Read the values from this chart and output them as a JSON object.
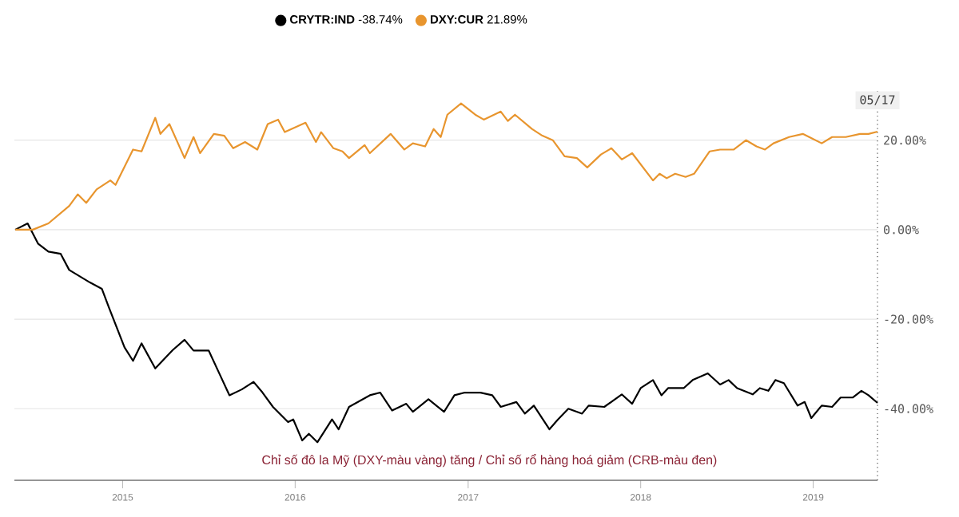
{
  "chart_data": {
    "type": "line",
    "xlim": [
      "2014-05-17",
      "2019-05-17"
    ],
    "ylim": [
      -56,
      31
    ],
    "xticks": [
      "2015",
      "2016",
      "2017",
      "2018",
      "2019"
    ],
    "yticks": [
      {
        "value": 20,
        "label": "20.00%"
      },
      {
        "value": 0,
        "label": "0.00%"
      },
      {
        "value": -20,
        "label": "-20.00%"
      },
      {
        "value": -40,
        "label": "-40.00%"
      }
    ],
    "grid": "y",
    "legend": "top",
    "marker": "none",
    "line_style": "solid",
    "ref_lines": [
      {
        "axis": "x",
        "value": "2019-05-17",
        "label": "05/17",
        "line_style": "dotted"
      }
    ],
    "annotations": [
      "Chỉ số đô la Mỹ (DXY-màu vàng) tăng / Chỉ số rổ hàng hoá giảm (CRB-màu đen)"
    ],
    "series": [
      {
        "name": "**CRYTR:IND** -38.74%",
        "color": "#000000",
        "x": [
          "2014-05-19",
          "2014-06-14",
          "2014-07-06",
          "2014-07-28",
          "2014-08-23",
          "2014-09-10",
          "2014-10-24",
          "2014-11-18",
          "2014-12-03",
          "2015-01-05",
          "2015-01-23",
          "2015-02-10",
          "2015-03-11",
          "2015-04-17",
          "2015-05-12",
          "2015-05-31",
          "2015-07-02",
          "2015-07-24",
          "2015-08-15",
          "2015-09-10",
          "2015-10-05",
          "2015-10-24",
          "2015-11-15",
          "2015-12-17",
          "2015-12-28",
          "2016-01-16",
          "2016-01-30",
          "2016-02-17",
          "2016-03-19",
          "2016-04-02",
          "2016-04-24",
          "2016-06-07",
          "2016-06-29",
          "2016-07-24",
          "2016-08-23",
          "2016-09-06",
          "2016-10-09",
          "2016-11-11",
          "2016-12-03",
          "2016-12-25",
          "2017-01-27",
          "2017-02-21",
          "2017-03-11",
          "2017-04-13",
          "2017-05-01",
          "2017-05-20",
          "2017-06-22",
          "2017-07-10",
          "2017-08-01",
          "2017-08-30",
          "2017-09-13",
          "2017-10-16",
          "2017-11-22",
          "2017-12-14",
          "2018-01-01",
          "2018-01-27",
          "2018-02-14",
          "2018-02-28",
          "2018-04-02",
          "2018-04-21",
          "2018-05-23",
          "2018-06-18",
          "2018-07-06",
          "2018-07-24",
          "2018-08-26",
          "2018-09-10",
          "2018-09-28",
          "2018-10-13",
          "2018-10-31",
          "2018-11-29",
          "2018-12-14",
          "2018-12-28",
          "2019-01-19",
          "2019-02-10",
          "2019-02-28",
          "2019-03-26",
          "2019-04-13",
          "2019-04-28",
          "2019-05-17"
        ],
        "values": [
          0,
          1.4,
          -3.1,
          -4.9,
          -5.4,
          -9,
          -11.8,
          -13.2,
          -17.4,
          -26.3,
          -29.3,
          -25.4,
          -31,
          -26.9,
          -24.6,
          -27,
          -27,
          -32,
          -37,
          -35.7,
          -34,
          -36.4,
          -39.6,
          -43,
          -42.4,
          -47.1,
          -45.6,
          -47.5,
          -42.4,
          -44.6,
          -39.6,
          -37,
          -36.4,
          -40.4,
          -38.9,
          -40.7,
          -37.9,
          -40.7,
          -37,
          -36.4,
          -36.4,
          -37,
          -39.6,
          -38.5,
          -41.1,
          -39.3,
          -44.6,
          -42.4,
          -40,
          -41.1,
          -39.3,
          -39.6,
          -36.8,
          -38.9,
          -35.4,
          -33.6,
          -37,
          -35.4,
          -35.4,
          -33.6,
          -32.1,
          -34.6,
          -33.6,
          -35.4,
          -36.8,
          -35.4,
          -36,
          -33.6,
          -34.3,
          -39.3,
          -38.5,
          -42.1,
          -39.3,
          -39.6,
          -37.5,
          -37.5,
          -36,
          -37,
          -38.7
        ]
      },
      {
        "name": "**DXY:CUR** 21.89%",
        "color": "#e8952e",
        "x": [
          "2014-05-19",
          "2014-06-25",
          "2014-07-28",
          "2014-09-10",
          "2014-09-28",
          "2014-10-16",
          "2014-11-07",
          "2014-12-06",
          "2014-12-17",
          "2015-01-23",
          "2015-02-10",
          "2015-03-11",
          "2015-03-22",
          "2015-04-10",
          "2015-05-12",
          "2015-05-31",
          "2015-06-14",
          "2015-07-13",
          "2015-08-04",
          "2015-08-23",
          "2015-09-17",
          "2015-10-13",
          "2015-11-04",
          "2015-11-26",
          "2015-12-10",
          "2016-01-23",
          "2016-02-14",
          "2016-02-25",
          "2016-03-22",
          "2016-04-10",
          "2016-04-24",
          "2016-05-27",
          "2016-06-07",
          "2016-07-21",
          "2016-08-19",
          "2016-09-06",
          "2016-10-02",
          "2016-10-20",
          "2016-11-04",
          "2016-11-18",
          "2016-12-17",
          "2017-01-16",
          "2017-02-03",
          "2017-03-11",
          "2017-03-26",
          "2017-04-10",
          "2017-05-16",
          "2017-06-07",
          "2017-06-29",
          "2017-07-24",
          "2017-08-19",
          "2017-09-10",
          "2017-10-09",
          "2017-10-31",
          "2017-11-22",
          "2017-12-14",
          "2018-01-27",
          "2018-02-10",
          "2018-02-25",
          "2018-03-15",
          "2018-04-06",
          "2018-04-24",
          "2018-05-27",
          "2018-06-18",
          "2018-07-17",
          "2018-08-12",
          "2018-09-03",
          "2018-09-21",
          "2018-10-09",
          "2018-11-11",
          "2018-12-10",
          "2019-01-19",
          "2019-02-10",
          "2019-03-11",
          "2019-04-10",
          "2019-04-28",
          "2019-05-17"
        ],
        "values": [
          0,
          0,
          1.4,
          5.3,
          7.9,
          6,
          9,
          11,
          10,
          17.9,
          17.5,
          25,
          21.4,
          23.6,
          16,
          20.7,
          17.1,
          21.4,
          21,
          18.2,
          19.6,
          17.9,
          23.6,
          24.6,
          21.8,
          23.9,
          19.6,
          21.8,
          18.2,
          17.5,
          16,
          18.9,
          17.1,
          21.4,
          17.9,
          19.3,
          18.6,
          22.5,
          20.7,
          25.7,
          28.2,
          25.7,
          24.6,
          26.4,
          24.3,
          25.7,
          22.5,
          21,
          20,
          16.4,
          16,
          13.9,
          16.8,
          18.2,
          15.7,
          17.1,
          11,
          12.5,
          11.5,
          12.5,
          11.8,
          12.5,
          17.5,
          17.9,
          17.9,
          20,
          18.6,
          17.9,
          19.3,
          20.7,
          21.4,
          19.3,
          20.7,
          20.7,
          21.4,
          21.4,
          21.9
        ]
      }
    ]
  }
}
